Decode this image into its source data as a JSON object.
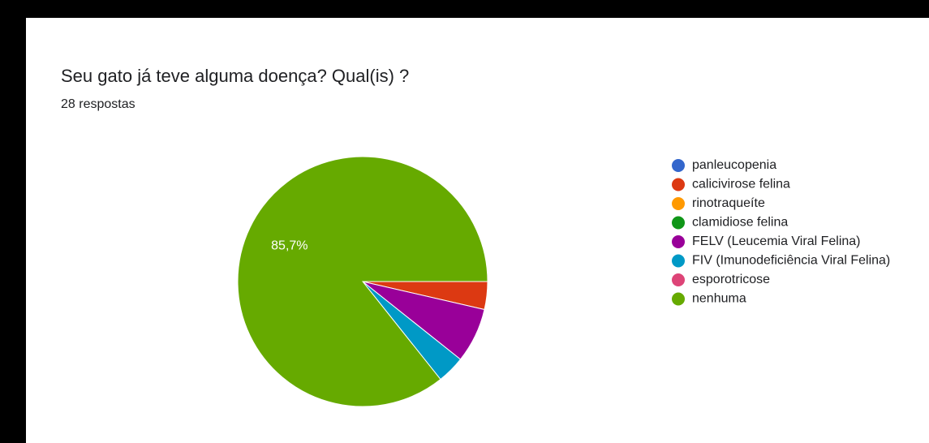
{
  "chart_data": {
    "type": "pie",
    "title": "Seu gato já teve alguma doença? Qual(is) ?",
    "subtitle": "28 respostas",
    "categories": [
      "panleucopenia",
      "calicivirose felina",
      "rinotraqueíte",
      "clamidiose felina",
      "FELV (Leucemia Viral Felina)",
      "FIV (Imunodeficiência Viral Felina)",
      "esporotricose",
      "nenhuma"
    ],
    "values": [
      0,
      3.6,
      0,
      0,
      7.1,
      3.6,
      0,
      85.7
    ],
    "value_labels": [
      null,
      null,
      null,
      null,
      null,
      null,
      null,
      "85,7%"
    ],
    "colors": [
      "#3366cc",
      "#dc3912",
      "#ff9900",
      "#109618",
      "#990099",
      "#0099c6",
      "#dd4477",
      "#66aa00"
    ]
  }
}
